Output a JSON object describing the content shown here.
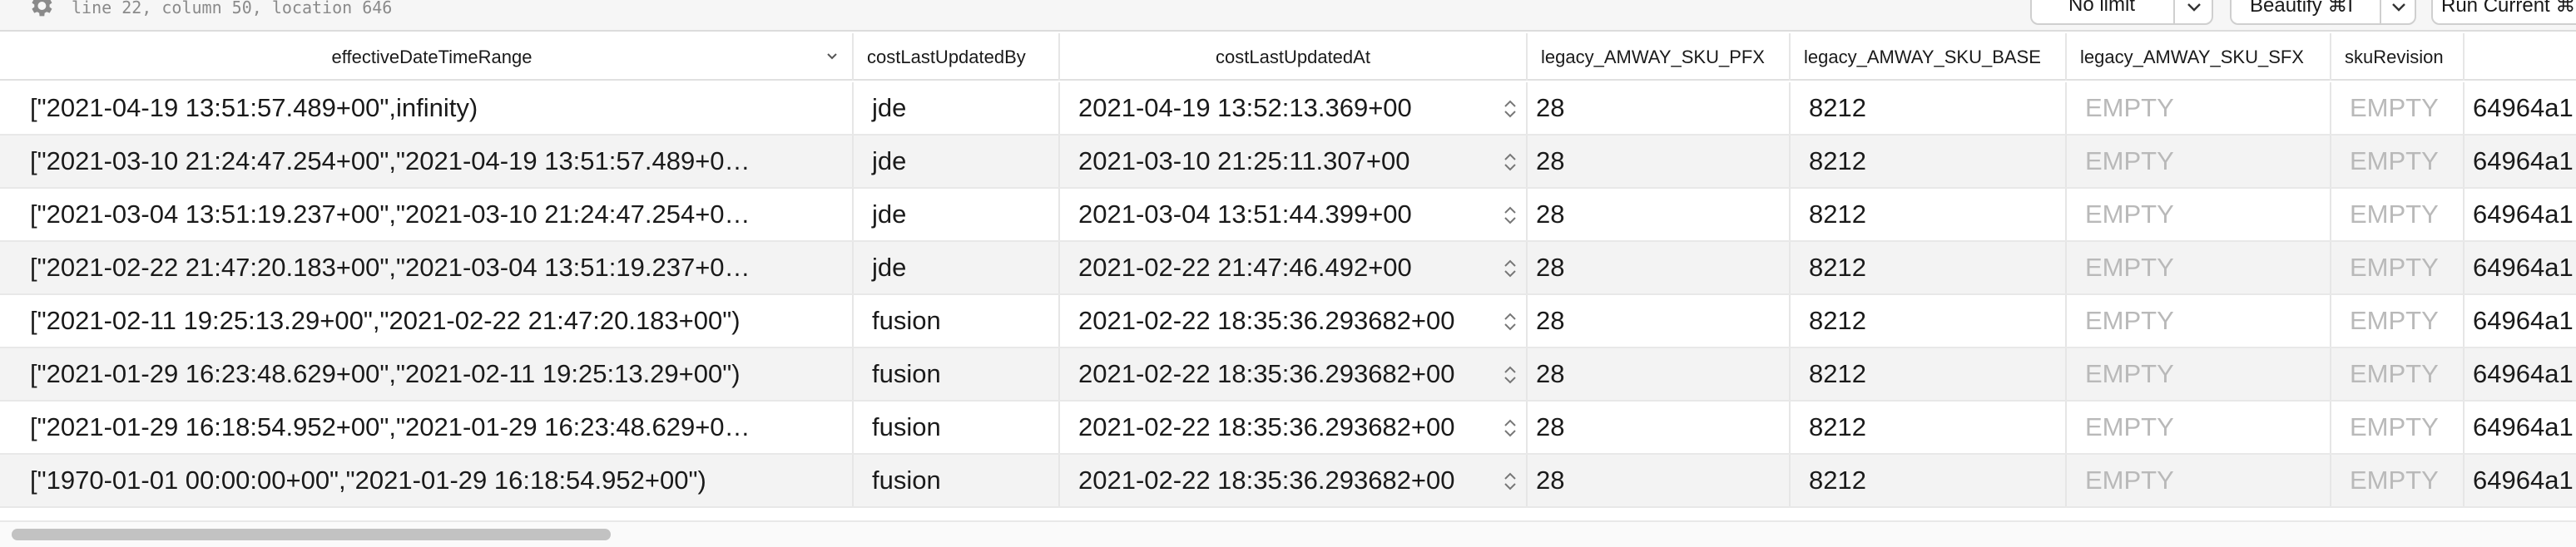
{
  "toolbar": {
    "cursor_info": "line 22, column 50, location 646",
    "limit_label": "No limit",
    "beautify_label": "Beautify ⌘I",
    "run_label": "Run Current ⌘"
  },
  "columns": [
    "effectiveDateTimeRange",
    "costLastUpdatedBy",
    "costLastUpdatedAt",
    "legacy_AMWAY_SKU_PFX",
    "legacy_AMWAY_SKU_BASE",
    "legacy_AMWAY_SKU_SFX",
    "skuRevision",
    ""
  ],
  "rows": [
    [
      "[\"2021-04-19 13:51:57.489+00\",infinity)",
      "jde",
      "2021-04-19 13:52:13.369+00",
      "28",
      "8212",
      "EMPTY",
      "EMPTY",
      "64964a1"
    ],
    [
      "[\"2021-03-10 21:24:47.254+00\",\"2021-04-19 13:51:57.489+0…",
      "jde",
      "2021-03-10 21:25:11.307+00",
      "28",
      "8212",
      "EMPTY",
      "EMPTY",
      "64964a1"
    ],
    [
      "[\"2021-03-04 13:51:19.237+00\",\"2021-03-10 21:24:47.254+0…",
      "jde",
      "2021-03-04 13:51:44.399+00",
      "28",
      "8212",
      "EMPTY",
      "EMPTY",
      "64964a1"
    ],
    [
      "[\"2021-02-22 21:47:20.183+00\",\"2021-03-04 13:51:19.237+0…",
      "jde",
      "2021-02-22 21:47:46.492+00",
      "28",
      "8212",
      "EMPTY",
      "EMPTY",
      "64964a1"
    ],
    [
      "[\"2021-02-11 19:25:13.29+00\",\"2021-02-22 21:47:20.183+00\")",
      "fusion",
      "2021-02-22 18:35:36.293682+00",
      "28",
      "8212",
      "EMPTY",
      "EMPTY",
      "64964a1"
    ],
    [
      "[\"2021-01-29 16:23:48.629+00\",\"2021-02-11 19:25:13.29+00\")",
      "fusion",
      "2021-02-22 18:35:36.293682+00",
      "28",
      "8212",
      "EMPTY",
      "EMPTY",
      "64964a1"
    ],
    [
      "[\"2021-01-29 16:18:54.952+00\",\"2021-01-29 16:23:48.629+0…",
      "fusion",
      "2021-02-22 18:35:36.293682+00",
      "28",
      "8212",
      "EMPTY",
      "EMPTY",
      "64964a1"
    ],
    [
      "[\"1970-01-01 00:00:00+00\",\"2021-01-29 16:18:54.952+00\")",
      "fusion",
      "2021-02-22 18:35:36.293682+00",
      "28",
      "8212",
      "EMPTY",
      "EMPTY",
      "64964a1"
    ]
  ]
}
